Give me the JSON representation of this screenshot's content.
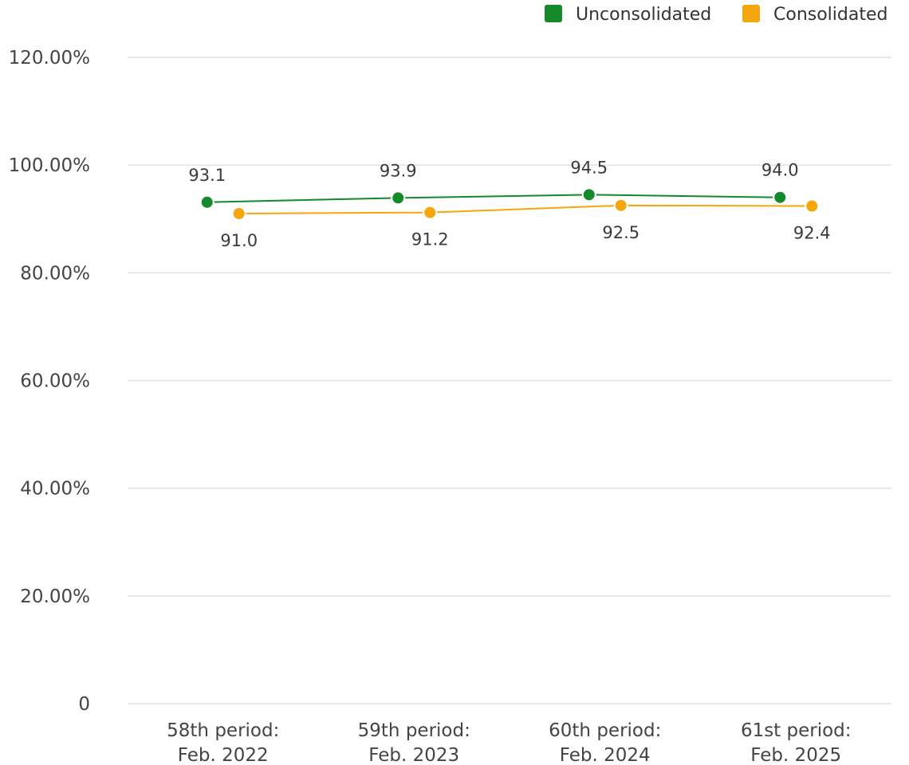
{
  "chart_data": {
    "type": "line",
    "title": "",
    "xlabel": "",
    "ylabel": "",
    "categories": [
      [
        "58th period:",
        "Feb. 2022"
      ],
      [
        "59th period:",
        "Feb. 2023"
      ],
      [
        "60th period:",
        "Feb. 2024"
      ],
      [
        "61st period:",
        "Feb. 2025"
      ]
    ],
    "ylim": [
      0,
      120
    ],
    "y_ticks": [
      {
        "value": 0,
        "label": "0"
      },
      {
        "value": 20,
        "label": "20.00%"
      },
      {
        "value": 40,
        "label": "40.00%"
      },
      {
        "value": 60,
        "label": "60.00%"
      },
      {
        "value": 80,
        "label": "80.00%"
      },
      {
        "value": 100,
        "label": "100.00%"
      },
      {
        "value": 120,
        "label": "120.00%"
      }
    ],
    "grid": true,
    "legend_position": "top-right",
    "series": [
      {
        "name": "Unconsolidated",
        "color": "#148a2b",
        "values": [
          93.1,
          93.9,
          94.5,
          94.0
        ],
        "labels": [
          "93.1",
          "93.9",
          "94.5",
          "94.0"
        ],
        "label_position": "above"
      },
      {
        "name": "Consolidated",
        "color": "#f5a60a",
        "values": [
          91.0,
          91.2,
          92.5,
          92.4
        ],
        "labels": [
          "91.0",
          "91.2",
          "92.5",
          "92.4"
        ],
        "label_position": "below"
      }
    ]
  }
}
